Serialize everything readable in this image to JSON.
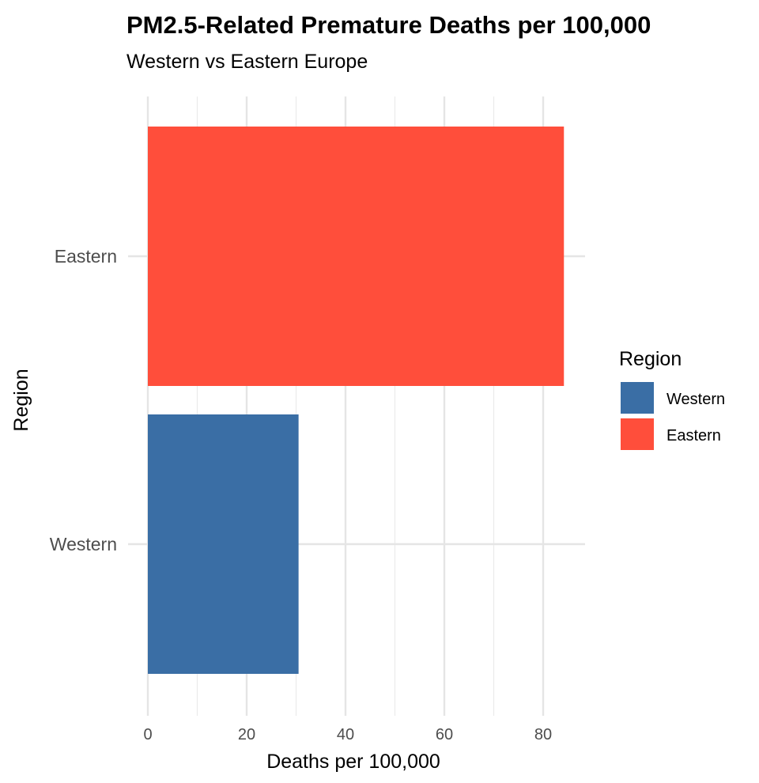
{
  "chart_data": {
    "type": "bar",
    "orientation": "horizontal",
    "title": "PM2.5-Related Premature Deaths per 100,000",
    "subtitle": "Western vs Eastern Europe",
    "xlabel": "Deaths per 100,000",
    "ylabel": "Region",
    "categories": [
      "Western",
      "Eastern"
    ],
    "values": [
      30.5,
      84.2
    ],
    "colors": [
      "#3a6ea5",
      "#ff4e3b"
    ],
    "xlim": [
      0,
      88
    ],
    "x_ticks": [
      0,
      20,
      40,
      60,
      80
    ],
    "x_tick_labels": [
      "0",
      "20",
      "40",
      "60",
      "80"
    ],
    "grid": true,
    "legend": {
      "title": "Region",
      "placement": "right",
      "entries": [
        {
          "label": "Western",
          "color": "#3a6ea5"
        },
        {
          "label": "Eastern",
          "color": "#ff4e3b"
        }
      ]
    }
  }
}
